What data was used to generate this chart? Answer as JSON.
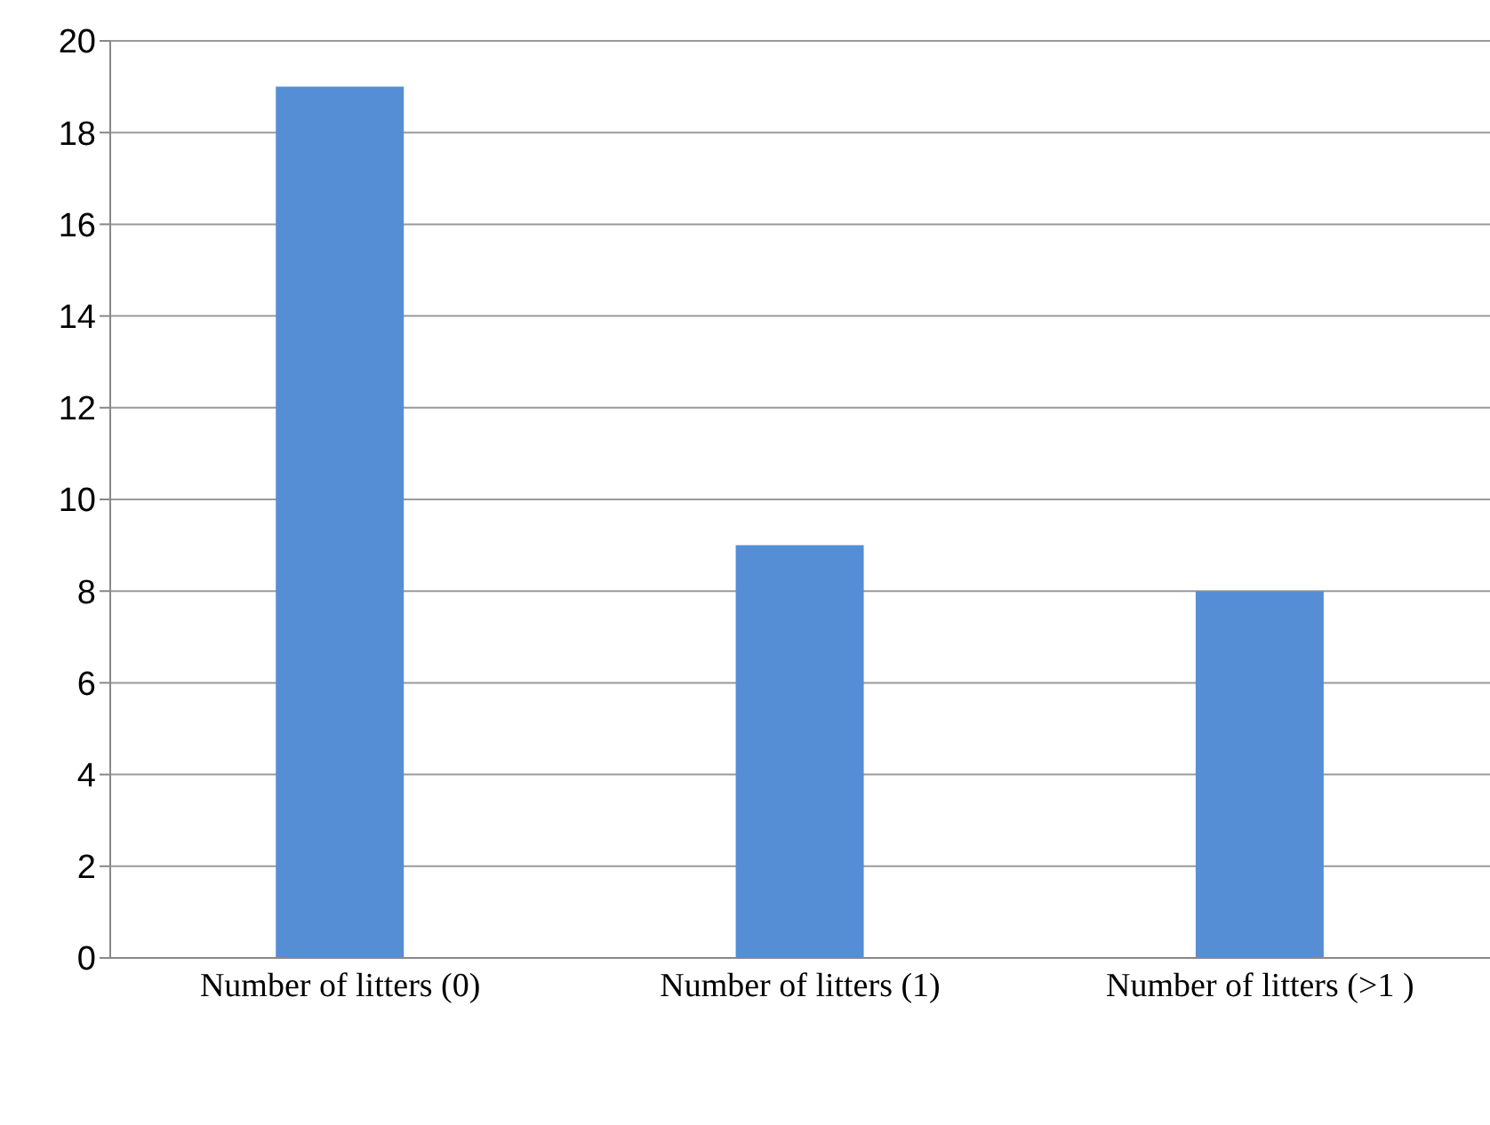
{
  "chart_data": {
    "type": "bar",
    "categories": [
      "Number of litters (0)",
      "Number of litters (1)",
      "Number of litters (>1 )"
    ],
    "values": [
      19,
      9,
      8
    ],
    "color": "#558ed5",
    "ylim": [
      0,
      20
    ],
    "yticks": [
      0,
      2,
      4,
      6,
      8,
      10,
      12,
      14,
      16,
      18,
      20
    ],
    "grid": "y",
    "legend": false
  }
}
